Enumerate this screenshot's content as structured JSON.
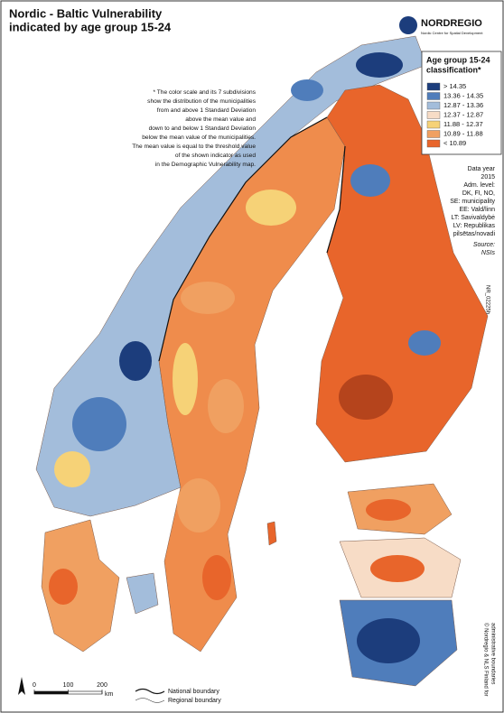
{
  "header": {
    "title_lines": [
      "Nordic - Baltic Vulnerability",
      "indicated by age group 15-24"
    ]
  },
  "logo": {
    "name": "NORDREGIO",
    "tagline": "Nordic Centre for Spatial Development"
  },
  "note": [
    "* The color scale and its 7 subdivisions",
    "show the distribution of the municipalities",
    "from and above 1 Standard Deviation",
    "above the mean value and",
    "down to and below 1 Standard Deviation",
    "below the mean value of the municipalities.",
    "The mean value is equal to the threshold value",
    "of the shown indicator as used",
    "in the Demographic Vulnerability map."
  ],
  "legend": {
    "title_lines": [
      "Age group 15-24",
      "classification*"
    ],
    "items": [
      {
        "label": "> 14.35",
        "color": "#1c3d7c"
      },
      {
        "label": "13.36 - 14.35",
        "color": "#4f7dbb"
      },
      {
        "label": "12.87 - 13.36",
        "color": "#a3bddb"
      },
      {
        "label": "12.37 - 12.87",
        "color": "#f7dcc6"
      },
      {
        "label": "11.88 - 12.37",
        "color": "#f6d277"
      },
      {
        "label": "10.89 - 11.88",
        "color": "#f0a061"
      },
      {
        "label": "< 10.89",
        "color": "#e8652b"
      }
    ]
  },
  "info": [
    "Data year",
    "2015",
    "Adm. level:",
    "DK, FI, NO,",
    "SE: municipality",
    "EE: Vald/linn",
    "LT: Savivaldybė",
    "LV: Republikas",
    "pilsētas/novadi"
  ],
  "source": {
    "label": "Source:",
    "value": "NSIs"
  },
  "map_id": "NR_02225h",
  "copyright": [
    "© Nordregio & NLS Finland for",
    "administrative boundaries"
  ],
  "scale": {
    "ticks": [
      0,
      100,
      200
    ],
    "unit": "km"
  },
  "boundaries": [
    "National boundary",
    "Regional boundary"
  ]
}
